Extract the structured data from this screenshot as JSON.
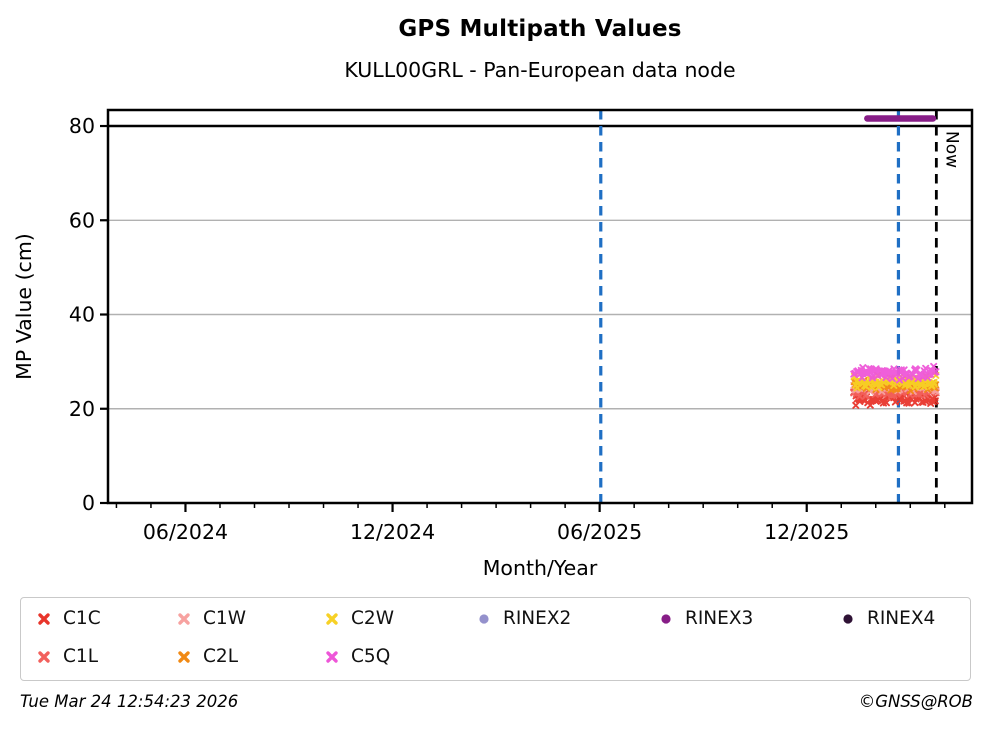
{
  "header": {
    "title": "GPS Multipath Values",
    "subtitle": "KULL00GRL - Pan-European data node"
  },
  "footer": {
    "timestamp": "Tue Mar 24 12:54:23 2026",
    "copyright": "©GNSS@ROB"
  },
  "chart_data": {
    "type": "scatter",
    "title": "GPS Multipath Values",
    "subtitle": "KULL00GRL - Pan-European data node",
    "xlabel": "Month/Year",
    "ylabel": "MP Value (cm)",
    "x_range": [
      "2024-03-24",
      "2026-04-25"
    ],
    "ylim": [
      0,
      83.4
    ],
    "y_ticks": [
      0,
      20,
      40,
      60,
      80
    ],
    "x_major_ticks": [
      {
        "date": "2024-06-01",
        "label": "06/2024"
      },
      {
        "date": "2024-12-01",
        "label": "12/2024"
      },
      {
        "date": "2025-06-01",
        "label": "06/2025"
      },
      {
        "date": "2025-12-01",
        "label": "12/2025"
      }
    ],
    "x_minor_ticks_monthly": true,
    "grid": true,
    "grid_color": "#b1b1b1",
    "threshold_line": {
      "y": 80,
      "color": "#000000",
      "style": "solid"
    },
    "vlines": [
      {
        "date": "2025-06-02",
        "color": "#1f6fc4",
        "style": "dashed",
        "label": ""
      },
      {
        "date": "2026-02-21",
        "color": "#1f6fc4",
        "style": "dashed",
        "label": ""
      },
      {
        "date": "2026-03-24",
        "color": "#000000",
        "style": "dashed",
        "label": "Now"
      }
    ],
    "rinex_segments": [
      {
        "name": "RINEX3",
        "y": 81.6,
        "start": "2026-01-24",
        "end": "2026-03-21",
        "color": "#871d87"
      }
    ],
    "series": [
      {
        "name": "C1C",
        "marker": "x",
        "color": "#e8352b",
        "start": "2026-01-12",
        "end": "2026-03-24",
        "y_min": 20.4,
        "y_max": 24.3
      },
      {
        "name": "C1L",
        "marker": "x",
        "color": "#f2605c",
        "start": "2026-01-12",
        "end": "2026-03-24",
        "y_min": 22.3,
        "y_max": 25.2
      },
      {
        "name": "C1W",
        "marker": "x",
        "color": "#f7a2a0",
        "start": "2026-01-12",
        "end": "2026-03-24",
        "y_min": 23.3,
        "y_max": 25.8
      },
      {
        "name": "C2L",
        "marker": "x",
        "color": "#f18913",
        "start": "2026-01-12",
        "end": "2026-03-24",
        "y_min": 23.8,
        "y_max": 26.3
      },
      {
        "name": "C2W",
        "marker": "x",
        "color": "#f7d125",
        "start": "2026-01-12",
        "end": "2026-03-24",
        "y_min": 24.3,
        "y_max": 27.2
      },
      {
        "name": "C5Q",
        "marker": "x",
        "color": "#ee56d8",
        "start": "2026-01-12",
        "end": "2026-03-24",
        "y_min": 25.8,
        "y_max": 29.3
      }
    ],
    "legend": {
      "position": "below",
      "items": [
        {
          "label": "C1C",
          "marker": "x",
          "color": "#e8352b",
          "col": 0,
          "row": 0
        },
        {
          "label": "C1L",
          "marker": "x",
          "color": "#f2605c",
          "col": 0,
          "row": 1
        },
        {
          "label": "C1W",
          "marker": "x",
          "color": "#f7a2a0",
          "col": 1,
          "row": 0
        },
        {
          "label": "C2L",
          "marker": "x",
          "color": "#f18913",
          "col": 1,
          "row": 1
        },
        {
          "label": "C2W",
          "marker": "x",
          "color": "#f7d125",
          "col": 2,
          "row": 0
        },
        {
          "label": "C5Q",
          "marker": "x",
          "color": "#ee56d8",
          "col": 2,
          "row": 1
        },
        {
          "label": "RINEX2",
          "marker": "circle",
          "color": "#9491cc",
          "col": 3,
          "row": 0
        },
        {
          "label": "RINEX3",
          "marker": "circle",
          "color": "#871d87",
          "col": 4,
          "row": 0
        },
        {
          "label": "RINEX4",
          "marker": "circle",
          "color": "#2f1235",
          "col": 5,
          "row": 0
        }
      ]
    }
  }
}
